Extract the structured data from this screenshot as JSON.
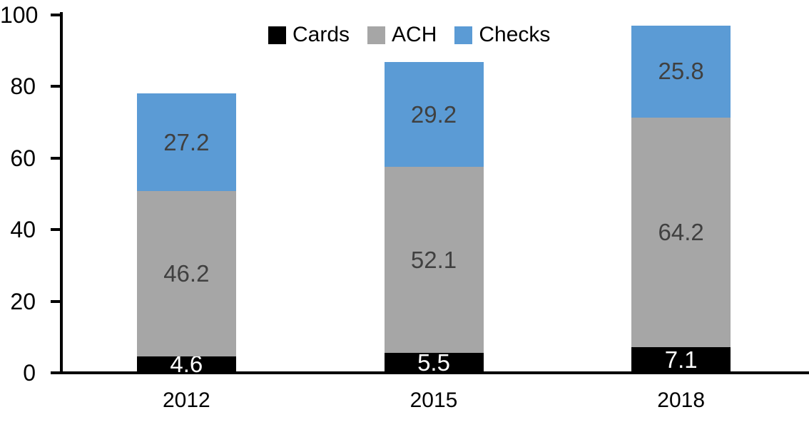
{
  "chart_data": {
    "type": "bar",
    "stacked": true,
    "title": "",
    "categories": [
      "2012",
      "2015",
      "2018"
    ],
    "series": [
      {
        "name": "Cards",
        "color": "#000000",
        "label_color": "#FFFFFF",
        "values": [
          4.6,
          5.5,
          7.1
        ]
      },
      {
        "name": "ACH",
        "color": "#A6A6A6",
        "label_color": "#404040",
        "values": [
          46.2,
          52.1,
          64.2
        ]
      },
      {
        "name": "Checks",
        "color": "#5B9BD5",
        "label_color": "#404040",
        "values": [
          27.2,
          29.2,
          25.8
        ]
      }
    ],
    "totals": [
      78.0,
      86.8,
      97.1
    ],
    "xlabel": "",
    "ylabel": "",
    "ylim": [
      0,
      100
    ],
    "yticks": [
      0,
      20,
      40,
      60,
      80,
      100
    ],
    "grid": false,
    "legend_position": "top",
    "axis_color": "#000000",
    "background_color": "#FFFFFF"
  }
}
